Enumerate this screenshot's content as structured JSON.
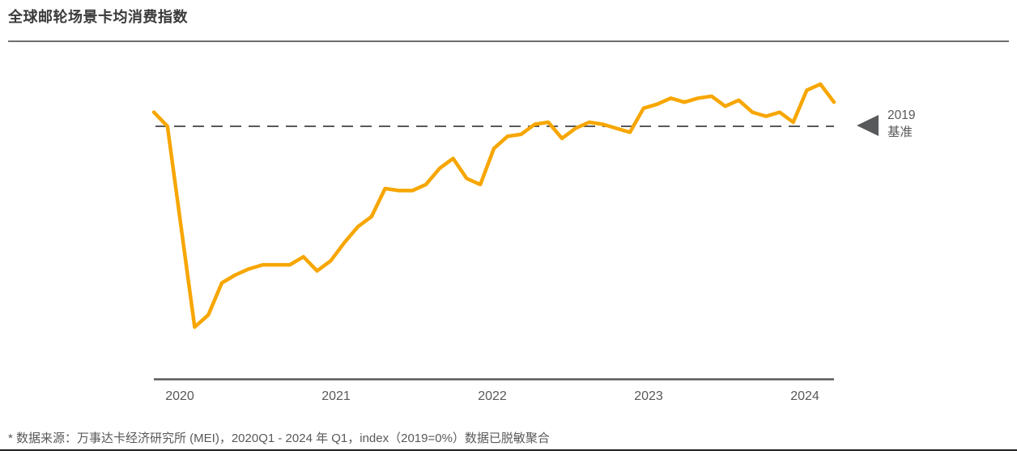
{
  "page": {
    "title": "全球邮轮场景卡均消费指数",
    "footnote": "* 数据来源：万事达卡经济研究所 (MEI)，2020Q1 - 2024 年 Q1，index（2019=0%）数据已脱敏聚合"
  },
  "baseline_marker": {
    "icon": "left-pointing-triangle",
    "line1": "2019",
    "line2": "基准",
    "color": "#58595B"
  },
  "chart_data": {
    "type": "line",
    "title": "全球邮轮场景卡均消费指数",
    "unit": "index % vs 2019 (2019=0%)",
    "x_start": "2020Q1",
    "x_end": "2024Q1",
    "x_interval": "monthly",
    "x_axis": {
      "tick_labels": [
        "2020",
        "2021",
        "2022",
        "2023",
        "2024"
      ]
    },
    "baseline": {
      "label": "2019 基准",
      "value": 0
    },
    "values": [
      7,
      0,
      -50,
      -100,
      -94,
      -78,
      -74,
      -71,
      -69,
      -69,
      -69,
      -65,
      -72,
      -67,
      -58,
      -50,
      -45,
      -31,
      -32,
      -32,
      -29,
      -21,
      -16,
      -26,
      -29,
      -11,
      -5,
      -4,
      1,
      2,
      -6,
      -1,
      2,
      1,
      -1,
      -3,
      9,
      11,
      14,
      12,
      14,
      15,
      10,
      13,
      7,
      5,
      7,
      2,
      18,
      21,
      12
    ],
    "ylim": [
      -110,
      30
    ],
    "grid": false,
    "legend": false,
    "line_color": "#F7A600",
    "baseline_color": "#58595B",
    "axis_color": "#58595B"
  }
}
